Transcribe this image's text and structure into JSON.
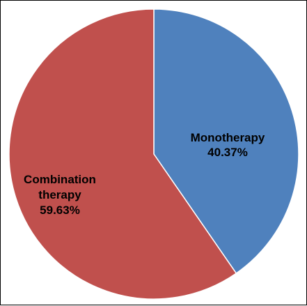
{
  "chart_data": {
    "type": "pie",
    "title": "",
    "start_angle_deg": 0,
    "direction": "clockwise",
    "legend": "none",
    "slices": [
      {
        "label_lines": [
          "Monotherapy"
        ],
        "value": 40.37,
        "value_label": "40.37%",
        "color": "#4f81bd"
      },
      {
        "label_lines": [
          "Combination",
          "therapy"
        ],
        "value": 59.63,
        "value_label": "59.63%",
        "color": "#c0504d"
      }
    ]
  }
}
